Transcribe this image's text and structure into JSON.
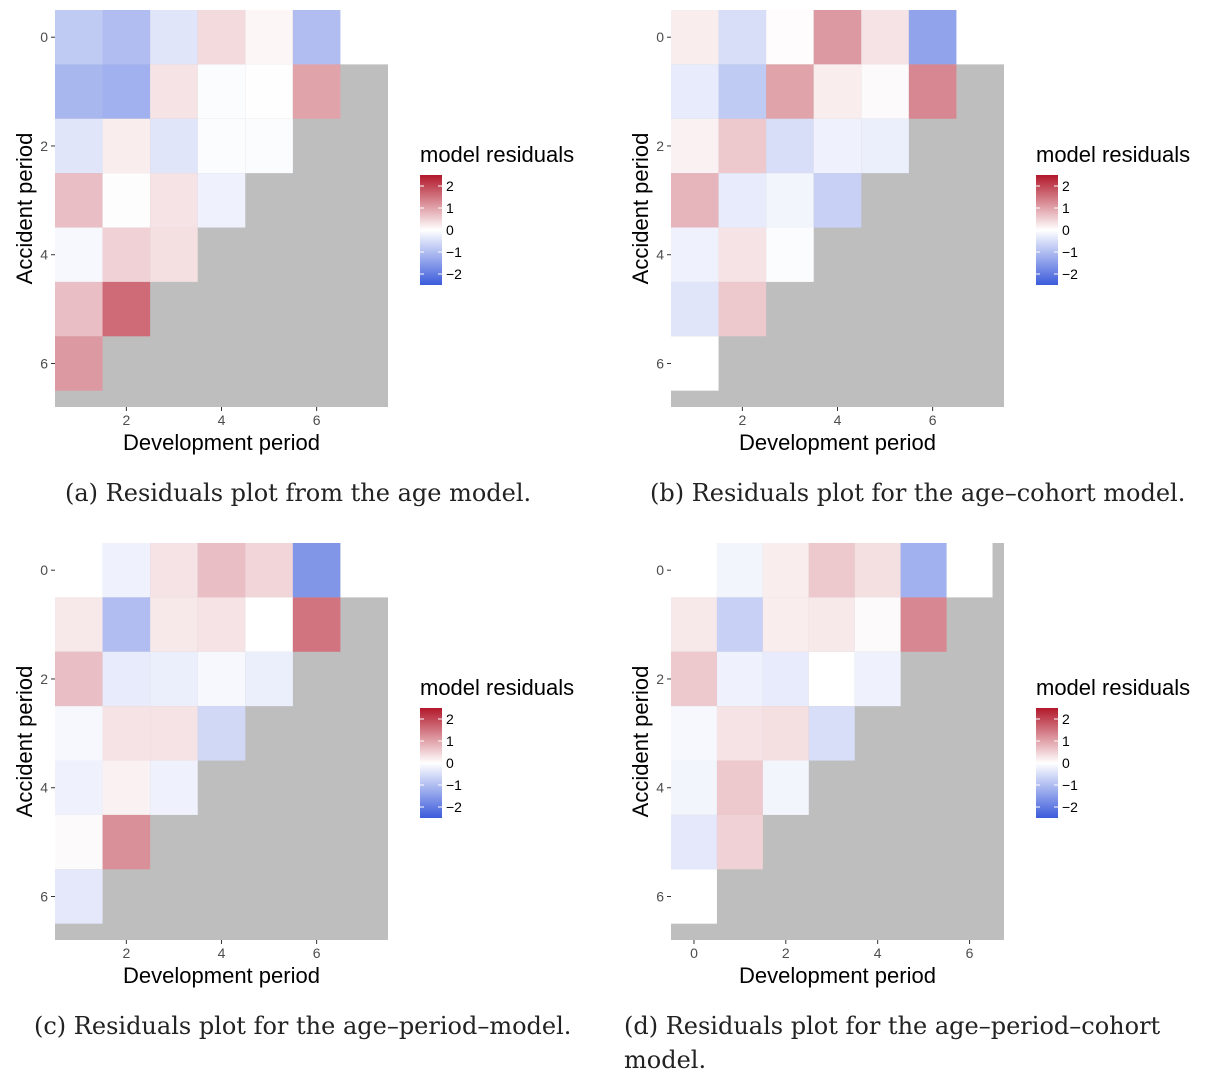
{
  "legend": {
    "title": "model residuals",
    "ticks": [
      "2",
      "1",
      "0",
      "−1",
      "−2"
    ],
    "colors": {
      "low": "#3b5bdb",
      "mid": "#ffffff",
      "high": "#b2182b"
    }
  },
  "panel_background": "#bebebe",
  "chart_data": [
    {
      "type": "heatmap",
      "caption": "(a) Residuals plot from the age model.",
      "xlabel": "Development period",
      "ylabel": "Accident period",
      "x_ticks": [
        2,
        4,
        6
      ],
      "y_ticks": [
        0,
        2,
        4,
        6
      ],
      "x_values": [
        1,
        2,
        3,
        4,
        5,
        6,
        7
      ],
      "y_values": [
        0,
        1,
        2,
        3,
        4,
        5,
        6
      ],
      "xlim": [
        0.5,
        7.5
      ],
      "ylim": [
        -0.5,
        6.8
      ],
      "color_range": [
        -2.5,
        2.5
      ],
      "rows": [
        [
          -0.8,
          -1.0,
          -0.4,
          0.4,
          0.1,
          -1.0,
          0.0
        ],
        [
          -1.1,
          -1.2,
          0.3,
          -0.05,
          -0.01,
          1.0
        ],
        [
          -0.4,
          0.2,
          -0.4,
          -0.05,
          -0.05
        ],
        [
          0.7,
          0.02,
          0.3,
          -0.2
        ],
        [
          -0.1,
          0.5,
          0.35
        ],
        [
          0.7,
          1.6
        ],
        [
          1.1
        ]
      ]
    },
    {
      "type": "heatmap",
      "caption": "(b) Residuals plot for the age–cohort model.",
      "xlabel": "Development period",
      "ylabel": "Accident period",
      "x_ticks": [
        2,
        4,
        6
      ],
      "y_ticks": [
        0,
        2,
        4,
        6
      ],
      "x_values": [
        1,
        2,
        3,
        4,
        5,
        6,
        7
      ],
      "y_values": [
        0,
        1,
        2,
        3,
        4,
        5,
        6
      ],
      "xlim": [
        0.5,
        7.5
      ],
      "ylim": [
        -0.5,
        6.8
      ],
      "color_range": [
        -2.5,
        2.5
      ],
      "rows": [
        [
          0.2,
          -0.5,
          0.03,
          1.1,
          0.3,
          -1.4,
          0.0
        ],
        [
          -0.3,
          -0.8,
          1.0,
          0.2,
          0.05,
          1.3
        ],
        [
          0.15,
          0.6,
          -0.5,
          -0.2,
          -0.25
        ],
        [
          0.8,
          -0.3,
          -0.15,
          -0.7
        ],
        [
          -0.2,
          0.3,
          -0.05
        ],
        [
          -0.4,
          0.6
        ],
        [
          0.0
        ]
      ]
    },
    {
      "type": "heatmap",
      "caption": "(c) Residuals plot for the age–period–model.",
      "xlabel": "Development period",
      "ylabel": "Accident period",
      "x_ticks": [
        2,
        4,
        6
      ],
      "y_ticks": [
        0,
        2,
        4,
        6
      ],
      "x_values": [
        1,
        2,
        3,
        4,
        5,
        6,
        7
      ],
      "y_values": [
        0,
        1,
        2,
        3,
        4,
        5,
        6
      ],
      "xlim": [
        0.5,
        7.5
      ],
      "ylim": [
        -0.5,
        6.8
      ],
      "color_range": [
        -2.5,
        2.5
      ],
      "rows": [
        [
          0.0,
          -0.2,
          0.3,
          0.7,
          0.45,
          -1.6,
          0.0
        ],
        [
          0.25,
          -1.0,
          0.25,
          0.3,
          0.0,
          1.5
        ],
        [
          0.7,
          -0.3,
          -0.25,
          -0.1,
          -0.25
        ],
        [
          -0.1,
          0.3,
          0.3,
          -0.6
        ],
        [
          -0.2,
          0.15,
          -0.2
        ],
        [
          0.05,
          1.2
        ],
        [
          -0.35
        ]
      ]
    },
    {
      "type": "heatmap",
      "caption": "(d) Residuals plot for the age–period–cohort model.",
      "xlabel": "Development period",
      "ylabel": "Accident period",
      "x_ticks": [
        0,
        2,
        4,
        6
      ],
      "y_ticks": [
        0,
        2,
        4,
        6
      ],
      "x_values": [
        0,
        1,
        2,
        3,
        4,
        5,
        6
      ],
      "y_values": [
        0,
        1,
        2,
        3,
        4,
        5,
        6
      ],
      "xlim": [
        -0.5,
        6.75
      ],
      "ylim": [
        -0.5,
        6.8
      ],
      "color_range": [
        -2.5,
        2.5
      ],
      "rows": [
        [
          0.0,
          -0.15,
          0.2,
          0.6,
          0.35,
          -1.2,
          0.0
        ],
        [
          0.25,
          -0.7,
          0.2,
          0.25,
          0.05,
          1.3
        ],
        [
          0.6,
          -0.2,
          -0.3,
          0.0,
          -0.2
        ],
        [
          -0.1,
          0.3,
          0.35,
          -0.5
        ],
        [
          -0.15,
          0.6,
          -0.15
        ],
        [
          -0.35,
          0.5
        ],
        [
          0.0
        ]
      ]
    }
  ]
}
